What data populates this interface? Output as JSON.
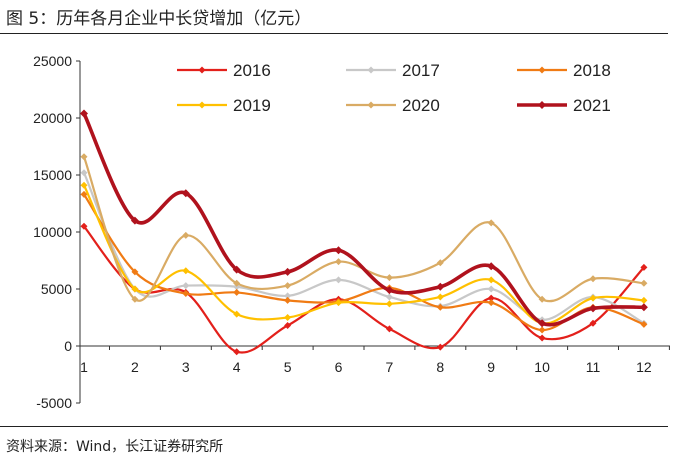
{
  "figure": {
    "title": "图 5：历年各月企业中长贷增加（亿元）",
    "source": "资料来源：Wind，长江证券研究所"
  },
  "chart_data": {
    "type": "line",
    "title": "历年各月企业中长贷增加（亿元）",
    "xlabel": "",
    "ylabel": "",
    "x": [
      1,
      2,
      3,
      4,
      5,
      6,
      7,
      8,
      9,
      10,
      11,
      12
    ],
    "xticks": [
      "1",
      "2",
      "3",
      "4",
      "5",
      "6",
      "7",
      "8",
      "9",
      "10",
      "11",
      "12"
    ],
    "ylim": [
      -5000,
      25000
    ],
    "yticks": [
      -5000,
      0,
      5000,
      10000,
      15000,
      20000,
      25000
    ],
    "ytick_labels": [
      "-5000",
      "0",
      "5000",
      "10000",
      "15000",
      "20000",
      "25000"
    ],
    "grid": false,
    "legend": "top",
    "smooth": true,
    "series": [
      {
        "name": "2016",
        "color": "#e3201b",
        "width": 2.2,
        "values": [
          10500,
          5000,
          4700,
          -500,
          1800,
          4100,
          1500,
          -100,
          4200,
          700,
          2000,
          6900
        ]
      },
      {
        "name": "2017",
        "color": "#c8c8c8",
        "width": 2.2,
        "values": [
          15200,
          5000,
          5300,
          5200,
          4400,
          5800,
          4300,
          3500,
          5000,
          2300,
          4300,
          2000
        ]
      },
      {
        "name": "2018",
        "color": "#f07b14",
        "width": 2.2,
        "values": [
          13300,
          6500,
          4600,
          4700,
          4000,
          3900,
          5100,
          3400,
          3800,
          1400,
          3400,
          1900
        ]
      },
      {
        "name": "2019",
        "color": "#ffc000",
        "width": 2.2,
        "values": [
          14100,
          5000,
          6600,
          2800,
          2500,
          3800,
          3700,
          4300,
          5800,
          2000,
          4200,
          4000
        ]
      },
      {
        "name": "2020",
        "color": "#d9ab64",
        "width": 2.2,
        "values": [
          16600,
          4100,
          9700,
          5500,
          5300,
          7400,
          6000,
          7300,
          10800,
          4100,
          5900,
          5500
        ]
      },
      {
        "name": "2021",
        "color": "#b0121d",
        "width": 3.6,
        "values": [
          20400,
          11000,
          13400,
          6700,
          6500,
          8400,
          4900,
          5200,
          7000,
          2000,
          3300,
          3400
        ]
      }
    ]
  }
}
